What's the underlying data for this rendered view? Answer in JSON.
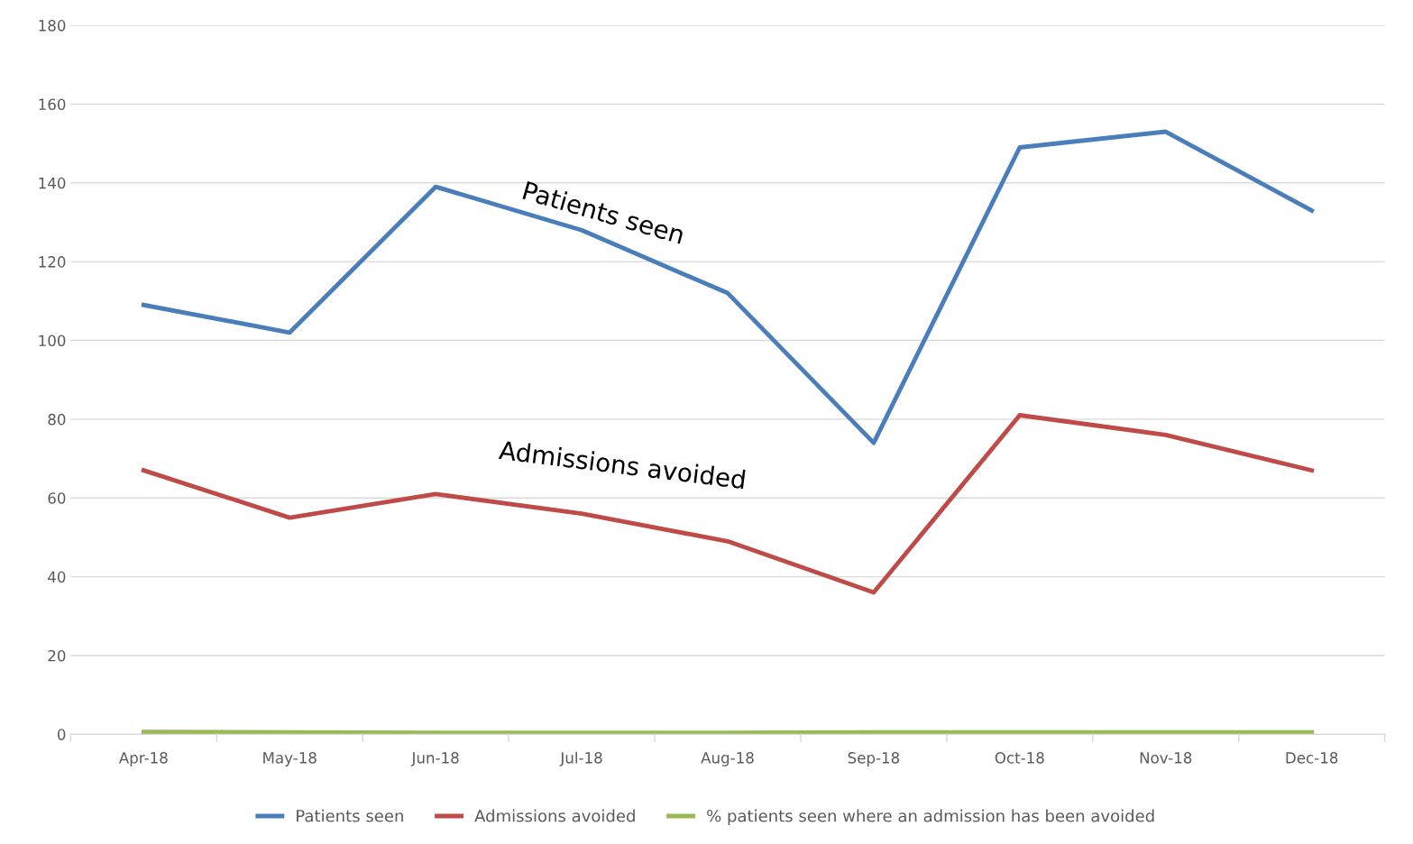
{
  "chart_data": {
    "type": "line",
    "categories": [
      "Apr-18",
      "May-18",
      "Jun-18",
      "Jul-18",
      "Aug-18",
      "Sep-18",
      "Oct-18",
      "Nov-18",
      "Dec-18"
    ],
    "series": [
      {
        "name": "Patients seen",
        "color": "#4a7ebb",
        "values": [
          109,
          102,
          139,
          128,
          112,
          74,
          149,
          153,
          133
        ]
      },
      {
        "name": "Admissions avoided",
        "color": "#be4b48",
        "values": [
          67,
          55,
          61,
          56,
          49,
          36,
          81,
          76,
          67
        ]
      },
      {
        "name": "% patients seen where an admission has been avoided",
        "color": "#98b954",
        "values": [
          0.6,
          0.5,
          0.4,
          0.4,
          0.4,
          0.5,
          0.5,
          0.5,
          0.5
        ]
      }
    ],
    "annotations": [
      "Patients seen",
      "Admissions avoided"
    ],
    "ylim": [
      0,
      180
    ],
    "yticks": [
      0,
      20,
      40,
      60,
      80,
      100,
      120,
      140,
      160,
      180
    ],
    "grid": "y",
    "legend": "bottom",
    "marker": "none",
    "line_style": "solid"
  }
}
